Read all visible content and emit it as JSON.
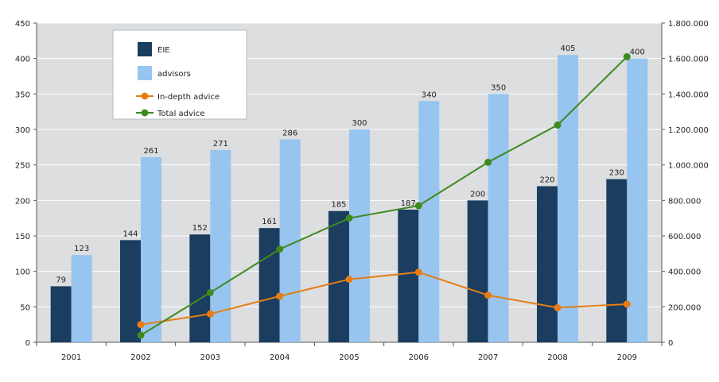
{
  "chart_data": {
    "type": "bar",
    "title": "",
    "xlabel": "",
    "ylabel": "",
    "categories": [
      "2001",
      "2002",
      "2003",
      "2004",
      "2005",
      "2006",
      "2007",
      "2008",
      "2009"
    ],
    "series": [
      {
        "name": "EIE",
        "type": "bar",
        "axis": "left",
        "color": "#1b3d60",
        "values": [
          79,
          144,
          152,
          161,
          185,
          187,
          200,
          220,
          230
        ]
      },
      {
        "name": "advisors",
        "type": "bar",
        "axis": "left",
        "color": "#97c5ef",
        "values": [
          123,
          261,
          271,
          286,
          300,
          340,
          350,
          405,
          400
        ]
      },
      {
        "name": "In-depth advice",
        "type": "line",
        "axis": "right",
        "color": "#e57d14",
        "values": [
          null,
          100000,
          160000,
          260000,
          355000,
          395000,
          265000,
          195000,
          215000
        ]
      },
      {
        "name": "Total advice",
        "type": "line",
        "axis": "right",
        "color": "#3f8a1f",
        "values": [
          null,
          40000,
          280000,
          525000,
          700000,
          770000,
          1015000,
          1225000,
          1610000
        ]
      }
    ],
    "y_left": {
      "min": 0,
      "max": 450,
      "ticks": [
        0,
        50,
        100,
        150,
        200,
        250,
        300,
        350,
        400,
        450
      ],
      "tick_labels": [
        "0",
        "50",
        "100",
        "150",
        "200",
        "250",
        "300",
        "350",
        "400",
        "450"
      ]
    },
    "y_right": {
      "min": 0,
      "max": 1800000,
      "ticks": [
        0,
        200000,
        400000,
        600000,
        800000,
        1000000,
        1200000,
        1400000,
        1600000,
        1800000
      ],
      "tick_labels": [
        "0",
        "200.000",
        "400.000",
        "600.000",
        "800.000",
        "1.000.000",
        "1.200.000",
        "1.400.000",
        "1.600.000",
        "1.800.000"
      ]
    },
    "grid": true,
    "legend_position": "top-left",
    "data_labels": "bars",
    "colors": {
      "plot_background": "#dcdee0",
      "gridline": "#ffffff",
      "axis": "#555555"
    }
  }
}
